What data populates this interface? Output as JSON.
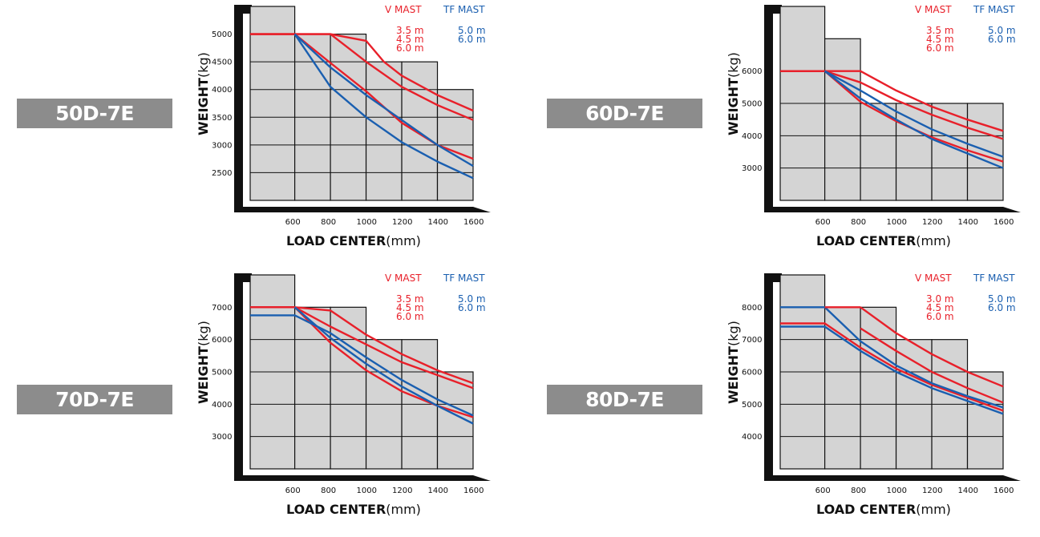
{
  "colors": {
    "v_mast": "#e8202a",
    "tf_mast": "#1a5fb0",
    "badge": "#8c8c8c",
    "grid_fill": "#d4d4d4"
  },
  "axes": {
    "xlabel_bold": "LOAD CENTER",
    "xlabel_unit": "(mm)",
    "ylabel_bold": "WEIGHT",
    "ylabel_unit": "(kg)"
  },
  "chart_data": [
    {
      "type": "line",
      "model": "50D-7E",
      "x_ticks": [
        "600",
        "800",
        "1000",
        "1200",
        "1400",
        "1600"
      ],
      "y_ticks": [
        "5000",
        "4500",
        "4000",
        "3500",
        "3000",
        "2500"
      ],
      "ylim": [
        2000,
        5500
      ],
      "xlim": [
        350,
        1600
      ],
      "bars": [
        {
          "x0": 350,
          "x1": 600,
          "top": 5500
        },
        {
          "x0": 600,
          "x1": 800,
          "top": 5000
        },
        {
          "x0": 800,
          "x1": 1000,
          "top": 5000
        },
        {
          "x0": 1000,
          "x1": 1200,
          "top": 4500
        },
        {
          "x0": 1200,
          "x1": 1400,
          "top": 4500
        },
        {
          "x0": 1400,
          "x1": 1600,
          "top": 4000
        }
      ],
      "legend": {
        "v_title": "V MAST",
        "tf_title": "TF MAST",
        "v_heights": [
          "3.5 m",
          "4.5 m",
          "6.0 m"
        ],
        "tf_heights": [
          "5.0 m",
          "6.0 m"
        ]
      },
      "series": [
        {
          "group": "V",
          "x": [
            350,
            600,
            800,
            1000,
            1100,
            1200,
            1400,
            1600
          ],
          "y": [
            5000,
            5000,
            5000,
            4880,
            4500,
            4250,
            3900,
            3620
          ]
        },
        {
          "group": "V",
          "x": [
            350,
            600,
            800,
            1000,
            1200,
            1400,
            1600
          ],
          "y": [
            5000,
            5000,
            5000,
            4500,
            4050,
            3720,
            3450
          ]
        },
        {
          "group": "V",
          "x": [
            350,
            600,
            800,
            1000,
            1200,
            1400,
            1600
          ],
          "y": [
            5000,
            5000,
            4480,
            3970,
            3400,
            3000,
            2750
          ]
        },
        {
          "group": "TF",
          "x": [
            600,
            800,
            1000,
            1200,
            1400,
            1600
          ],
          "y": [
            5000,
            4400,
            3900,
            3450,
            3000,
            2620
          ]
        },
        {
          "group": "TF",
          "x": [
            600,
            800,
            1000,
            1200,
            1400,
            1600
          ],
          "y": [
            5000,
            4050,
            3500,
            3050,
            2700,
            2400
          ]
        }
      ]
    },
    {
      "type": "line",
      "model": "60D-7E",
      "x_ticks": [
        "600",
        "800",
        "1000",
        "1200",
        "1400",
        "1600"
      ],
      "y_ticks": [
        "6000",
        "5000",
        "4000",
        "3000"
      ],
      "ylim": [
        2000,
        8000
      ],
      "xlim": [
        350,
        1600
      ],
      "bars": [
        {
          "x0": 350,
          "x1": 600,
          "top": 8000
        },
        {
          "x0": 600,
          "x1": 800,
          "top": 7000
        },
        {
          "x0": 800,
          "x1": 1000,
          "top": 5000
        },
        {
          "x0": 1000,
          "x1": 1200,
          "top": 5000
        },
        {
          "x0": 1200,
          "x1": 1400,
          "top": 5000
        },
        {
          "x0": 1400,
          "x1": 1600,
          "top": 5000
        }
      ],
      "legend": {
        "v_title": "V MAST",
        "tf_title": "TF MAST",
        "v_heights": [
          "3.5 m",
          "4.5 m",
          "6.0 m"
        ],
        "tf_heights": [
          "5.0 m",
          "6.0 m"
        ]
      },
      "series": [
        {
          "group": "V",
          "x": [
            350,
            600,
            800,
            1000,
            1200,
            1400,
            1600
          ],
          "y": [
            6000,
            6000,
            6000,
            5400,
            4900,
            4500,
            4150
          ]
        },
        {
          "group": "V",
          "x": [
            350,
            600,
            800,
            1000,
            1200,
            1400,
            1600
          ],
          "y": [
            6000,
            6000,
            5650,
            5100,
            4650,
            4250,
            3900
          ]
        },
        {
          "group": "V",
          "x": [
            350,
            600,
            800,
            1000,
            1200,
            1400,
            1600
          ],
          "y": [
            6000,
            6000,
            5050,
            4450,
            3950,
            3550,
            3200
          ]
        },
        {
          "group": "TF",
          "x": [
            600,
            800,
            1000,
            1200,
            1400,
            1600
          ],
          "y": [
            6000,
            5400,
            4750,
            4200,
            3750,
            3350
          ]
        },
        {
          "group": "TF",
          "x": [
            600,
            800,
            1000,
            1200,
            1400,
            1600
          ],
          "y": [
            6000,
            5150,
            4500,
            3900,
            3450,
            3000
          ]
        }
      ]
    },
    {
      "type": "line",
      "model": "70D-7E",
      "x_ticks": [
        "600",
        "800",
        "1000",
        "1200",
        "1400",
        "1600"
      ],
      "y_ticks": [
        "7000",
        "6000",
        "5000",
        "4000",
        "3000"
      ],
      "ylim": [
        2000,
        8000
      ],
      "xlim": [
        350,
        1600
      ],
      "bars": [
        {
          "x0": 350,
          "x1": 600,
          "top": 8000
        },
        {
          "x0": 600,
          "x1": 800,
          "top": 7000
        },
        {
          "x0": 800,
          "x1": 1000,
          "top": 7000
        },
        {
          "x0": 1000,
          "x1": 1200,
          "top": 6000
        },
        {
          "x0": 1200,
          "x1": 1400,
          "top": 6000
        },
        {
          "x0": 1400,
          "x1": 1600,
          "top": 5000
        }
      ],
      "legend": {
        "v_title": "V MAST",
        "tf_title": "TF MAST",
        "v_heights": [
          "3.5 m",
          "4.5 m",
          "6.0 m"
        ],
        "tf_heights": [
          "5.0 m",
          "6.0 m"
        ]
      },
      "series": [
        {
          "group": "V",
          "x": [
            350,
            600,
            800,
            1000,
            1200,
            1400,
            1600
          ],
          "y": [
            7000,
            7000,
            6900,
            6150,
            5550,
            5050,
            4650
          ]
        },
        {
          "group": "V",
          "x": [
            350,
            600,
            800,
            1000,
            1200,
            1400,
            1600
          ],
          "y": [
            7000,
            7000,
            6400,
            5850,
            5300,
            4900,
            4500
          ]
        },
        {
          "group": "V",
          "x": [
            350,
            600,
            800,
            1000,
            1200,
            1400,
            1600
          ],
          "y": [
            7000,
            7000,
            5900,
            5050,
            4400,
            3950,
            3600
          ]
        },
        {
          "group": "TF",
          "x": [
            350,
            600,
            800,
            1000,
            1200,
            1400,
            1600
          ],
          "y": [
            6750,
            6750,
            6200,
            5450,
            4750,
            4150,
            3650
          ]
        },
        {
          "group": "TF",
          "x": [
            600,
            800,
            1000,
            1200,
            1400,
            1600
          ],
          "y": [
            7000,
            6050,
            5250,
            4550,
            3950,
            3400
          ]
        }
      ]
    },
    {
      "type": "line",
      "model": "80D-7E",
      "x_ticks": [
        "600",
        "800",
        "1000",
        "1200",
        "1400",
        "1600"
      ],
      "y_ticks": [
        "8000",
        "7000",
        "6000",
        "5000",
        "4000"
      ],
      "ylim": [
        3000,
        9000
      ],
      "xlim": [
        350,
        1600
      ],
      "bars": [
        {
          "x0": 350,
          "x1": 600,
          "top": 9000
        },
        {
          "x0": 600,
          "x1": 800,
          "top": 8000
        },
        {
          "x0": 800,
          "x1": 1000,
          "top": 8000
        },
        {
          "x0": 1000,
          "x1": 1200,
          "top": 7000
        },
        {
          "x0": 1200,
          "x1": 1400,
          "top": 7000
        },
        {
          "x0": 1400,
          "x1": 1600,
          "top": 6000
        }
      ],
      "legend": {
        "v_title": "V MAST",
        "tf_title": "TF MAST",
        "v_heights": [
          "3.0 m",
          "4.5 m",
          "6.0 m"
        ],
        "tf_heights": [
          "5.0 m",
          "6.0 m"
        ]
      },
      "series": [
        {
          "group": "V",
          "x": [
            800,
            1000,
            1200,
            1400,
            1600
          ],
          "y": [
            8000,
            7200,
            6550,
            6000,
            5550
          ]
        },
        {
          "group": "V",
          "x": [
            800,
            1000,
            1200,
            1400,
            1600
          ],
          "y": [
            7350,
            6650,
            6000,
            5500,
            5050
          ]
        },
        {
          "group": "V",
          "x": [
            350,
            600,
            800,
            1000,
            1200,
            1400,
            1600
          ],
          "y": [
            7500,
            7500,
            6750,
            6100,
            5600,
            5200,
            4800
          ]
        },
        {
          "group": "TF",
          "x": [
            350,
            600,
            800,
            1000,
            1200,
            1400,
            1600
          ],
          "y": [
            8000,
            8000,
            6950,
            6200,
            5650,
            5250,
            4900
          ]
        },
        {
          "group": "TF",
          "x": [
            350,
            600,
            800,
            1000,
            1200,
            1400,
            1600
          ],
          "y": [
            7400,
            7400,
            6650,
            6000,
            5500,
            5100,
            4700
          ]
        },
        {
          "group": "V",
          "x": [
            600,
            800
          ],
          "y": [
            8000,
            8000
          ]
        }
      ]
    }
  ]
}
